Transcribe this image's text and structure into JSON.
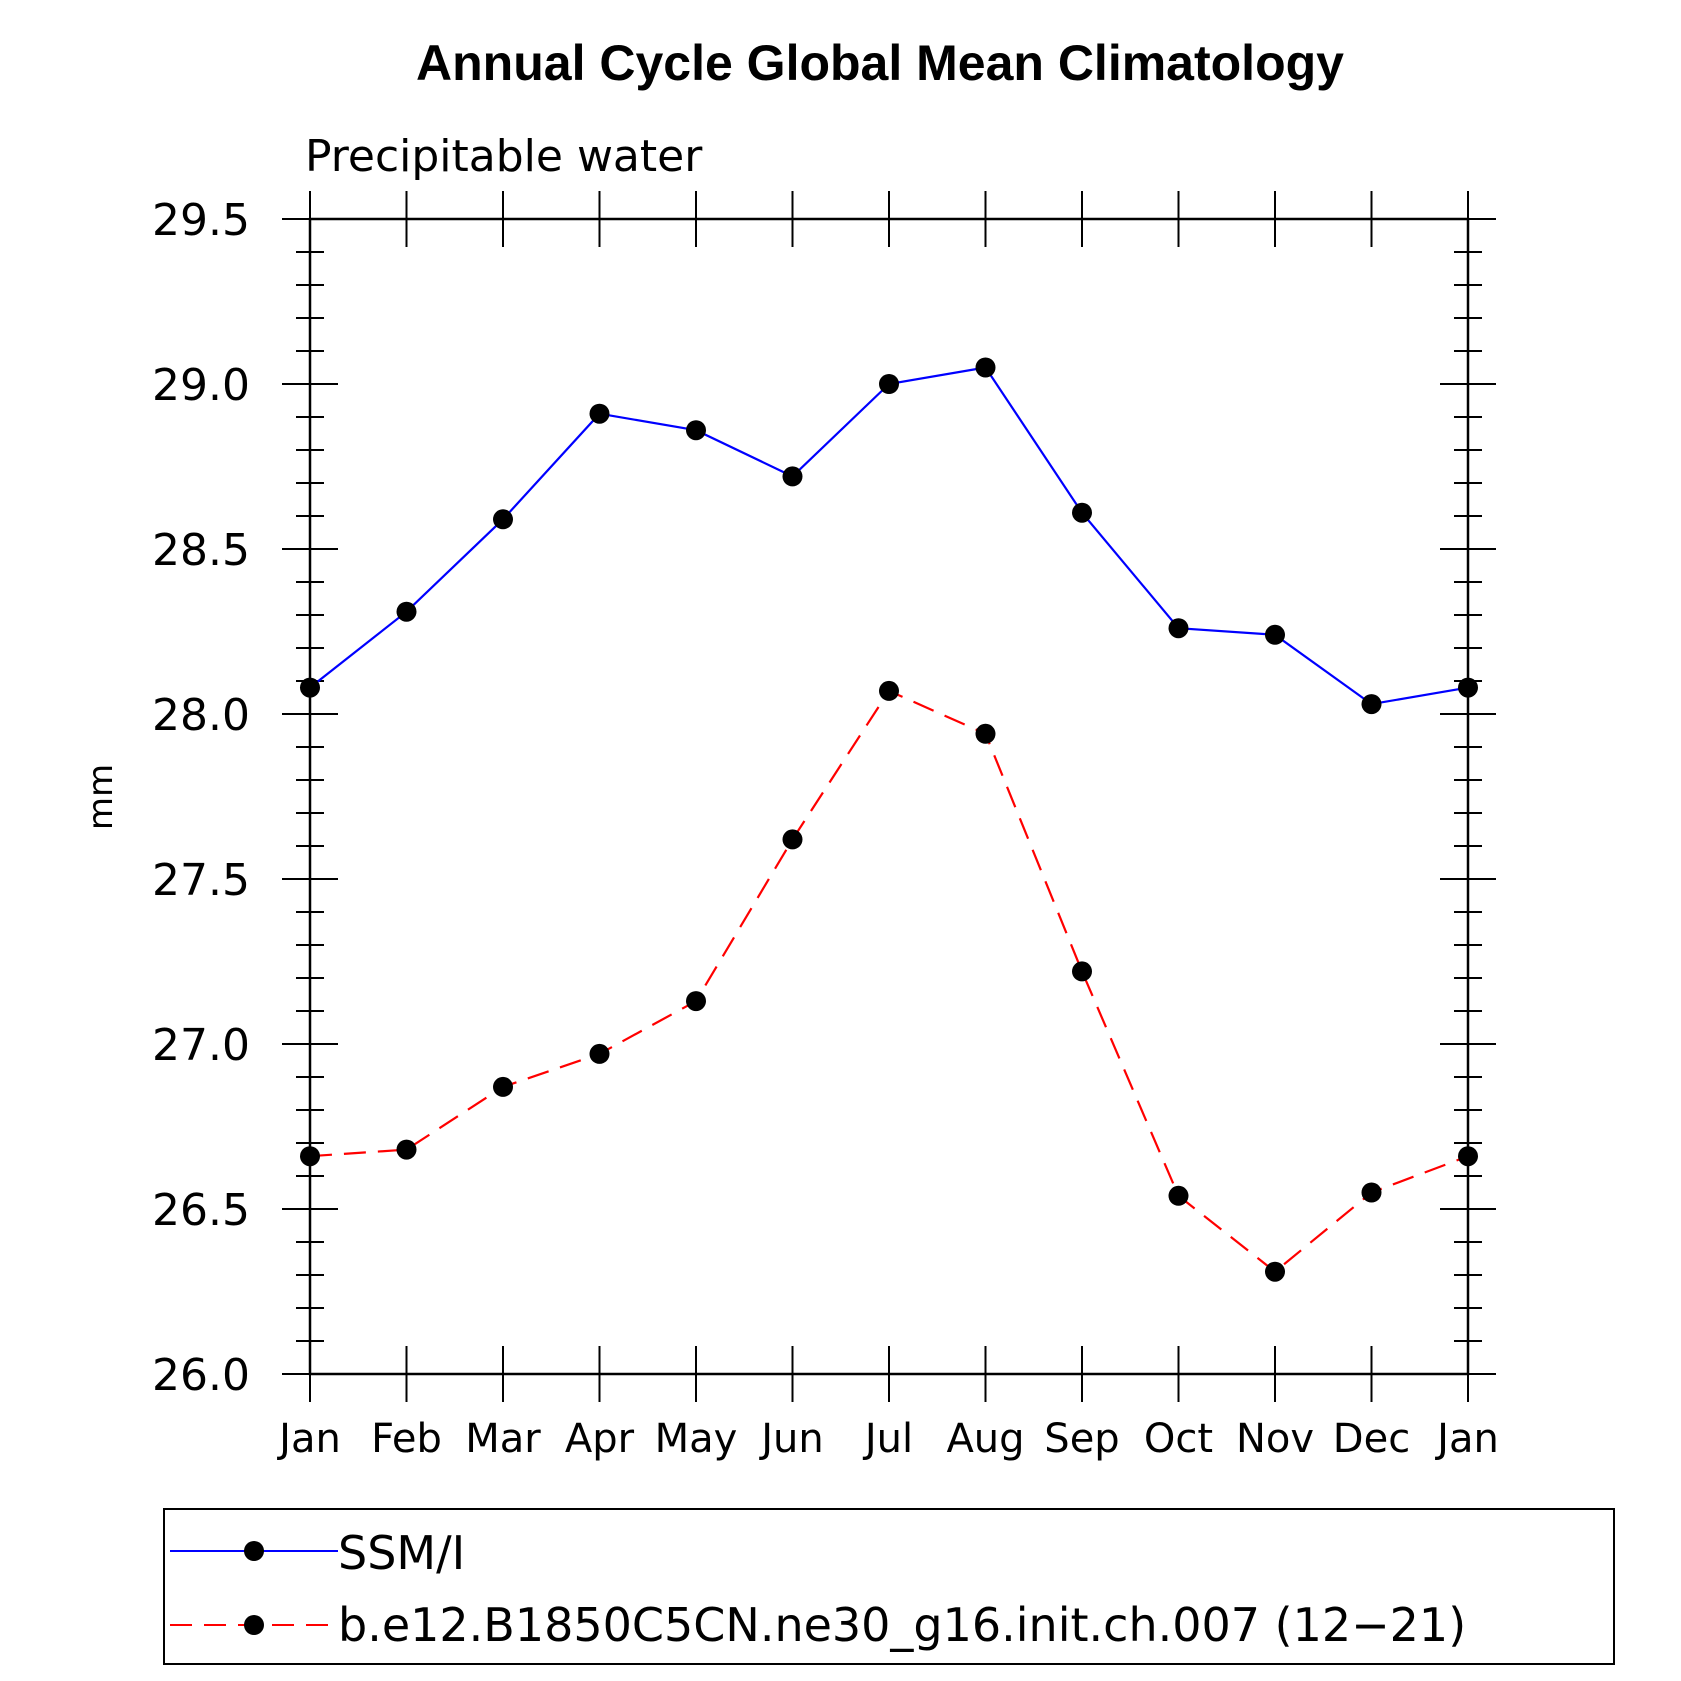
{
  "chart_data": {
    "type": "line",
    "title": "Annual Cycle Global Mean Climatology",
    "subtitle": "Precipitable water",
    "xlabel": "",
    "ylabel": "mm",
    "categories": [
      "Jan",
      "Feb",
      "Mar",
      "Apr",
      "May",
      "Jun",
      "Jul",
      "Aug",
      "Sep",
      "Oct",
      "Nov",
      "Dec",
      "Jan"
    ],
    "ylim": [
      26.0,
      29.5
    ],
    "yticks": [
      26.0,
      26.5,
      27.0,
      27.5,
      28.0,
      28.5,
      29.0,
      29.5
    ],
    "ytick_labels": [
      "26.0",
      "26.5",
      "27.0",
      "27.5",
      "28.0",
      "28.5",
      "29.0",
      "29.5"
    ],
    "grid": false,
    "legend_position": "bottom",
    "series": [
      {
        "name": "SSM/I",
        "color": "#0000ff",
        "dash": "solid",
        "marker": "circle",
        "values": [
          28.08,
          28.31,
          28.59,
          28.91,
          28.86,
          28.72,
          29.0,
          29.05,
          28.61,
          28.26,
          28.24,
          28.03,
          28.08
        ]
      },
      {
        "name": "b.e12.B1850C5CN.ne30_g16.init.ch.007 (12−21)",
        "color": "#ff0000",
        "dash": "dashed",
        "marker": "circle",
        "values": [
          26.66,
          26.68,
          26.87,
          26.97,
          27.13,
          27.62,
          28.07,
          27.94,
          27.22,
          26.54,
          26.31,
          26.55,
          26.66
        ]
      }
    ]
  }
}
